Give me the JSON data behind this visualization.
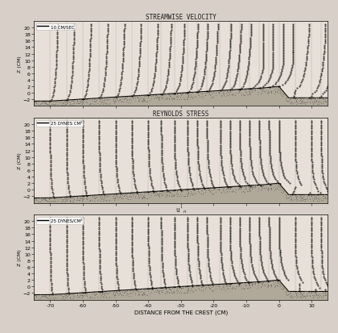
{
  "title_main": "STREAMWISE VELOCITY",
  "title2": "REYNOLDS STRESS",
  "title3": "u'",
  "xlabel": "DISTANCE FROM THE CREST (CM)",
  "ylabel": "Z (CM)",
  "legend1": "10 CM/SEC",
  "legend2": "25 DYNES CM²",
  "legend3": "25 DYNES/CM²",
  "xlim": [
    -75,
    15
  ],
  "ylim": [
    -4,
    22
  ],
  "yticks": [
    -2,
    0,
    2,
    4,
    6,
    8,
    10,
    12,
    14,
    16,
    18,
    20
  ],
  "xticks": [
    -70,
    -60,
    -50,
    -40,
    -30,
    -20,
    -10,
    0,
    10
  ],
  "profile_positions": [
    -70,
    -65,
    -60,
    -55,
    -50,
    -45,
    -40,
    -36,
    -32,
    -28,
    -25,
    -22,
    -18,
    -15,
    -12,
    -9,
    -6,
    -3,
    0,
    5,
    10,
    13
  ],
  "dune_color": "#b0a898",
  "figure_bg": "#d8d0c8",
  "panel_bg": "#e8e0d8",
  "text_color": "#1a1a1a"
}
